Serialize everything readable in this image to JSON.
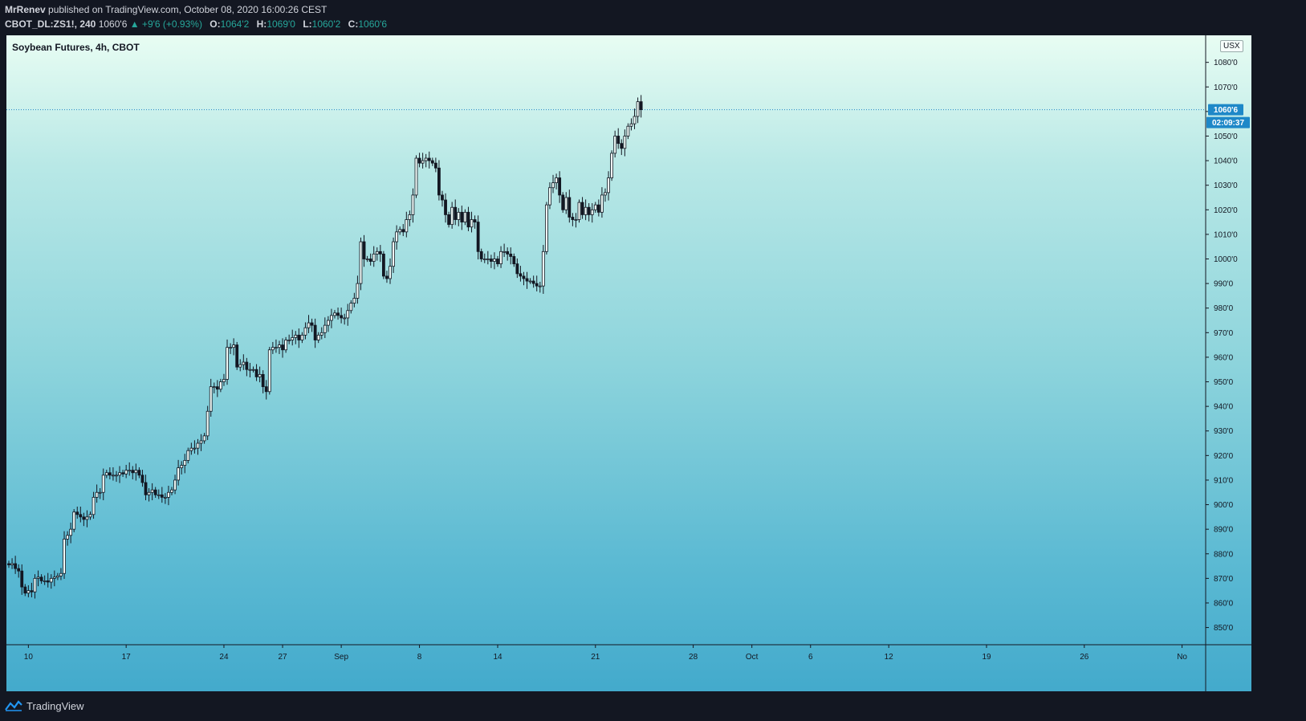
{
  "header": {
    "author": "MrRenev",
    "published_text": "published on TradingView.com, October 08, 2020 16:00:26 CEST",
    "symbol": "CBOT_DL:ZS1!, 240",
    "last": "1060'6",
    "change": "▲ +9'6 (+0.93%)",
    "o_label": "O:",
    "o_value": "1064'2",
    "h_label": "H:",
    "h_value": "1069'0",
    "l_label": "L:",
    "l_value": "1060'2",
    "c_label": "C:",
    "c_value": "1060'6"
  },
  "footer": {
    "brand": "TradingView"
  },
  "colors": {
    "accent": "#2196f3",
    "candle": "#131722",
    "price_badge": "#1e88c8"
  },
  "chart_data": {
    "type": "candlestick",
    "title": "Soybean Futures, 4h, CBOT",
    "currency": "USX",
    "last_price_label": "1060'6",
    "countdown": "02:09:37",
    "y_ticks": [
      850,
      860,
      870,
      880,
      890,
      900,
      910,
      920,
      930,
      940,
      950,
      960,
      970,
      980,
      990,
      1000,
      1010,
      1020,
      1030,
      1040,
      1050,
      1060,
      1070,
      1080
    ],
    "y_tick_labels": [
      "850'0",
      "860'0",
      "870'0",
      "880'0",
      "890'0",
      "900'0",
      "910'0",
      "920'0",
      "930'0",
      "940'0",
      "950'0",
      "960'0",
      "970'0",
      "980'0",
      "990'0",
      "1000'0",
      "1010'0",
      "1020'0",
      "1030'0",
      "1040'0",
      "1050'0",
      "1060'0",
      "1070'0",
      "1080'0"
    ],
    "ylim": [
      843,
      1091
    ],
    "last_price": 1060.75,
    "x_ticks": [
      {
        "label": "10",
        "bar": 6
      },
      {
        "label": "17",
        "bar": 36
      },
      {
        "label": "24",
        "bar": 66
      },
      {
        "label": "27",
        "bar": 84
      },
      {
        "label": "Sep",
        "bar": 102
      },
      {
        "label": "8",
        "bar": 126
      },
      {
        "label": "14",
        "bar": 150
      },
      {
        "label": "21",
        "bar": 180
      },
      {
        "label": "28",
        "bar": 210
      },
      {
        "label": "Oct",
        "bar": 228
      },
      {
        "label": "6",
        "bar": 246
      },
      {
        "label": "12",
        "bar": 270
      },
      {
        "label": "19",
        "bar": 300
      },
      {
        "label": "26",
        "bar": 330
      },
      {
        "label": "No",
        "bar": 360
      }
    ],
    "close": [
      875.5,
      876,
      874,
      873,
      866.5,
      864,
      865,
      864.5,
      870,
      870.5,
      869,
      869,
      868.5,
      870,
      870.5,
      871,
      872,
      886,
      887.5,
      890,
      897,
      896,
      895,
      894,
      895,
      896,
      903,
      905,
      905,
      912,
      913,
      912,
      912,
      912,
      913,
      912.5,
      914,
      914,
      913,
      914,
      912,
      909,
      904,
      905,
      906,
      904,
      904,
      903,
      903,
      905,
      906,
      910,
      915,
      916,
      918,
      922,
      923,
      923,
      925,
      926,
      928,
      938,
      948,
      948,
      947,
      950,
      951,
      964,
      964,
      965,
      956,
      957,
      958,
      955,
      955,
      955,
      952,
      953,
      948,
      946,
      963,
      964,
      964,
      965,
      963,
      967,
      967,
      968,
      969,
      967,
      969,
      972,
      974,
      973,
      967,
      969,
      970,
      973,
      975,
      977,
      978,
      977,
      976,
      976,
      979,
      982,
      984,
      990,
      1007,
      1000,
      1000,
      999,
      1002,
      1003,
      1002,
      993,
      992,
      997,
      1007,
      1011,
      1012,
      1011,
      1016,
      1018,
      1026,
      1041,
      1039,
      1040,
      1041,
      1040,
      1039,
      1037,
      1026,
      1024,
      1018,
      1014,
      1021,
      1016,
      1019,
      1015,
      1019,
      1013,
      1016,
      1015,
      1003,
      1000,
      1000,
      1000,
      999,
      1000,
      998,
      1003,
      1003,
      1002,
      1001,
      998,
      994,
      993,
      992,
      991,
      991,
      990,
      989,
      989,
      1003,
      1022,
      1029,
      1031,
      1033,
      1026,
      1020,
      1025,
      1017,
      1016,
      1016,
      1023,
      1018,
      1021,
      1018,
      1020,
      1022,
      1019,
      1026,
      1027,
      1033,
      1043,
      1050,
      1047,
      1045,
      1050,
      1054,
      1055,
      1058,
      1064,
      1060.75
    ],
    "candles_note": "open = previous close; highs/lows estimated from wicks"
  }
}
